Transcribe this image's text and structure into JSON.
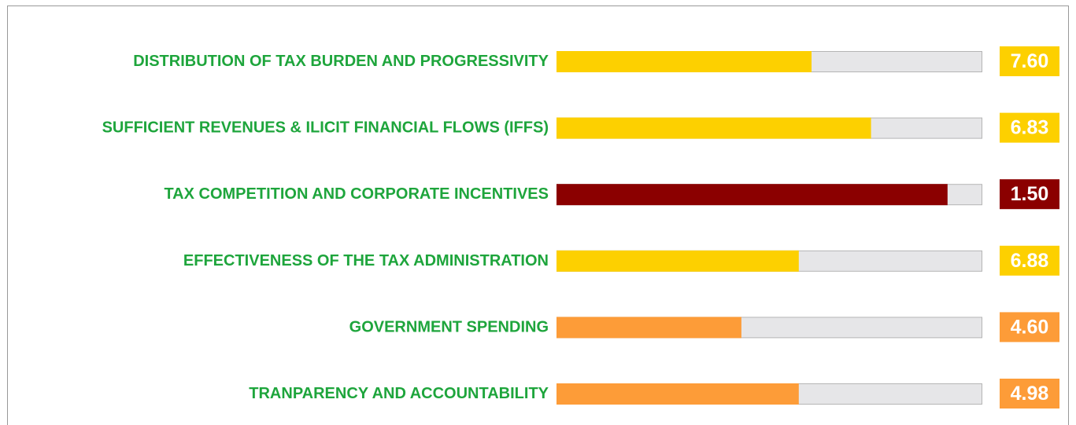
{
  "chart_data": {
    "type": "bar",
    "categories": [
      "DISTRIBUTION OF TAX BURDEN AND PROGRESSIVITY",
      "SUFFICIENT REVENUES & ILICIT FINANCIAL FLOWS (IFFS)",
      "TAX COMPETITION AND CORPORATE INCENTIVES",
      "EFFECTIVENESS OF THE TAX ADMINISTRATION",
      "GOVERNMENT SPENDING",
      "TRANPARENCY AND ACCOUNTABILITY"
    ],
    "values": [
      60,
      74,
      92,
      57,
      43.5,
      57
    ],
    "xlim": [
      0,
      100
    ],
    "colors": [
      "#fdd000",
      "#fdd000",
      "#8b0000",
      "#fdd000",
      "#fd9c38",
      "#fd9c38"
    ],
    "scores": [
      {
        "value": 7.6,
        "label": "7.60"
      },
      {
        "value": 6.83,
        "label": "6.83"
      },
      {
        "value": 1.5,
        "label": "1.50"
      },
      {
        "value": 6.88,
        "label": "6.88"
      },
      {
        "value": 4.6,
        "label": "4.60"
      },
      {
        "value": 4.98,
        "label": "4.98"
      }
    ],
    "label_color": "#1ea53c",
    "track_color": "#e6e6e8"
  }
}
